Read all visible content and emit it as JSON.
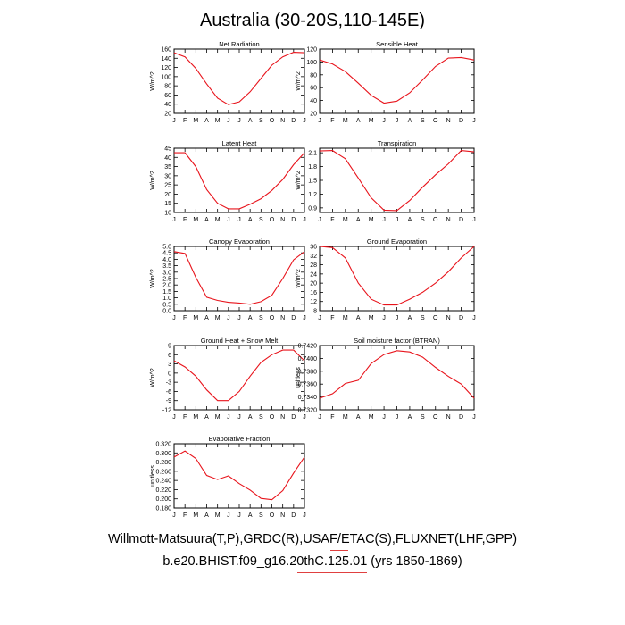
{
  "title": "Australia (30-20S,110-145E)",
  "footer": {
    "line1": "Willmott-Matsuura(T,P),GRDC(R),USAF/ETAC(S),FLUXNET(LHF,GPP)",
    "line2": "b.e20.BHIST.f09_g16.20thC.125.01 (yrs 1850-1869)"
  },
  "colors": {
    "series": "#e8141c",
    "axis": "#000000"
  },
  "chart_data": [
    {
      "type": "line",
      "title": "Net Radiation",
      "ylabel": "W/m^2",
      "x": [
        "J",
        "F",
        "M",
        "A",
        "M",
        "J",
        "J",
        "A",
        "S",
        "O",
        "N",
        "D",
        "J"
      ],
      "ylim": [
        20,
        160
      ],
      "yticks": [
        "20",
        "40",
        "60",
        "80",
        "100",
        "120",
        "140",
        "160"
      ],
      "series": [
        {
          "values": [
            152,
            143,
            118,
            84,
            53,
            39,
            45,
            67,
            96,
            125,
            143,
            153,
            152
          ]
        }
      ]
    },
    {
      "type": "line",
      "title": "Sensible Heat",
      "ylabel": "W/m^2",
      "x": [
        "J",
        "F",
        "M",
        "A",
        "M",
        "J",
        "J",
        "A",
        "S",
        "O",
        "N",
        "D",
        "J"
      ],
      "ylim": [
        20,
        120
      ],
      "yticks": [
        "20",
        "40",
        "60",
        "80",
        "100",
        "120"
      ],
      "series": [
        {
          "values": [
            103,
            97,
            85,
            67,
            48,
            36,
            39,
            52,
            72,
            93,
            106,
            107,
            103
          ]
        }
      ]
    },
    {
      "type": "line",
      "title": "Latent Heat",
      "ylabel": "W/m^2",
      "x": [
        "J",
        "F",
        "M",
        "A",
        "M",
        "J",
        "J",
        "A",
        "S",
        "O",
        "N",
        "D",
        "J"
      ],
      "ylim": [
        10,
        45
      ],
      "yticks": [
        "10",
        "15",
        "20",
        "25",
        "30",
        "35",
        "40",
        "45"
      ],
      "series": [
        {
          "values": [
            42.5,
            42.5,
            35,
            22.5,
            15,
            12,
            12,
            14.5,
            17.5,
            22,
            28,
            36,
            42.5
          ]
        }
      ]
    },
    {
      "type": "line",
      "title": "Transpiration",
      "ylabel": "W/m^2",
      "x": [
        "J",
        "F",
        "M",
        "A",
        "M",
        "J",
        "J",
        "A",
        "S",
        "O",
        "N",
        "D",
        "J"
      ],
      "ylim": [
        0.8,
        2.2
      ],
      "yticks": [
        "0.9",
        "1.2",
        "1.5",
        "1.8",
        "2.1"
      ],
      "ytick_values": [
        0.9,
        1.2,
        1.5,
        1.8,
        2.1
      ],
      "series": [
        {
          "values": [
            2.14,
            2.15,
            1.97,
            1.55,
            1.12,
            0.85,
            0.84,
            1.06,
            1.35,
            1.62,
            1.86,
            2.15,
            2.12
          ]
        }
      ]
    },
    {
      "type": "line",
      "title": "Canopy Evaporation",
      "ylabel": "W/m^2",
      "x": [
        "J",
        "F",
        "M",
        "A",
        "M",
        "J",
        "J",
        "A",
        "S",
        "O",
        "N",
        "D",
        "J"
      ],
      "ylim": [
        0,
        5
      ],
      "yticks": [
        "0.0",
        "0.5",
        "1.0",
        "1.5",
        "2.0",
        "2.5",
        "3.0",
        "3.5",
        "4.0",
        "4.5",
        "5.0"
      ],
      "series": [
        {
          "values": [
            4.6,
            4.45,
            2.6,
            1.05,
            0.8,
            0.65,
            0.6,
            0.5,
            0.7,
            1.2,
            2.5,
            3.95,
            4.6
          ]
        }
      ]
    },
    {
      "type": "line",
      "title": "Ground Evaporation",
      "ylabel": "W/m^2",
      "x": [
        "J",
        "F",
        "M",
        "A",
        "M",
        "J",
        "J",
        "A",
        "S",
        "O",
        "N",
        "D",
        "J"
      ],
      "ylim": [
        8,
        36
      ],
      "yticks": [
        "8",
        "12",
        "16",
        "20",
        "24",
        "28",
        "32",
        "36"
      ],
      "series": [
        {
          "values": [
            36,
            35.5,
            31,
            20,
            13,
            10.5,
            10.5,
            13,
            16,
            20,
            25,
            31,
            36
          ]
        }
      ]
    },
    {
      "type": "line",
      "title": "Ground Heat + Snow Melt",
      "ylabel": "W/m^2",
      "x": [
        "J",
        "F",
        "M",
        "A",
        "M",
        "J",
        "J",
        "A",
        "S",
        "O",
        "N",
        "D",
        "J"
      ],
      "ylim": [
        -12,
        9
      ],
      "yticks": [
        "-12",
        "-9",
        "-6",
        "-3",
        "0",
        "3",
        "6",
        "9"
      ],
      "series": [
        {
          "values": [
            4,
            2,
            -1,
            -5.5,
            -9,
            -9,
            -6,
            -1,
            3.5,
            6,
            7.5,
            7.5,
            4
          ]
        }
      ]
    },
    {
      "type": "line",
      "title": "Soil moisture factor (BTRAN)",
      "ylabel": "unitless",
      "x": [
        "J",
        "F",
        "M",
        "A",
        "M",
        "J",
        "J",
        "A",
        "S",
        "O",
        "N",
        "D",
        "J"
      ],
      "ylim": [
        0.732,
        0.742
      ],
      "yticks": [
        "0.7320",
        "0.7340",
        "0.7360",
        "0.7380",
        "0.7400",
        "0.7420"
      ],
      "series": [
        {
          "values": [
            0.7338,
            0.7345,
            0.7361,
            0.7366,
            0.7392,
            0.7406,
            0.7412,
            0.741,
            0.7402,
            0.7386,
            0.7372,
            0.736,
            0.7338
          ]
        }
      ]
    },
    {
      "type": "line",
      "title": "Evaporative Fraction",
      "ylabel": "unitless",
      "x": [
        "J",
        "F",
        "M",
        "A",
        "M",
        "J",
        "J",
        "A",
        "S",
        "O",
        "N",
        "D",
        "J"
      ],
      "ylim": [
        0.18,
        0.32
      ],
      "yticks": [
        "0.180",
        "0.200",
        "0.220",
        "0.240",
        "0.260",
        "0.280",
        "0.300",
        "0.320"
      ],
      "series": [
        {
          "values": [
            0.291,
            0.304,
            0.288,
            0.251,
            0.242,
            0.25,
            0.233,
            0.219,
            0.201,
            0.198,
            0.218,
            0.256,
            0.291
          ]
        }
      ]
    }
  ]
}
